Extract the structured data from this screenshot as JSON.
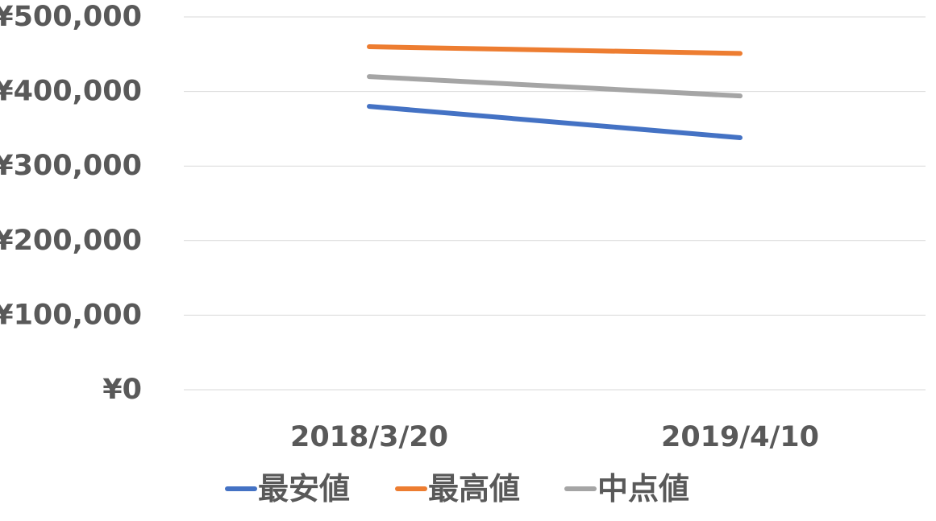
{
  "chart_data": {
    "type": "line",
    "title": "",
    "xlabel": "",
    "ylabel": "",
    "categories": [
      "2018/3/20",
      "2019/4/10"
    ],
    "ylim": [
      0,
      500000
    ],
    "y_ticks": [
      "¥0",
      "¥100,000",
      "¥200,000",
      "¥300,000",
      "¥400,000",
      "¥500,000"
    ],
    "y_tick_values": [
      0,
      100000,
      200000,
      300000,
      400000,
      500000
    ],
    "grid": true,
    "legend_position": "bottom",
    "series": [
      {
        "name": "最安値",
        "values": [
          380000,
          338000
        ],
        "color": "#4472c4"
      },
      {
        "name": "最高値",
        "values": [
          460000,
          451000
        ],
        "color": "#ed7d31"
      },
      {
        "name": "中点値",
        "values": [
          420000,
          394000
        ],
        "color": "#a5a5a5"
      }
    ]
  }
}
